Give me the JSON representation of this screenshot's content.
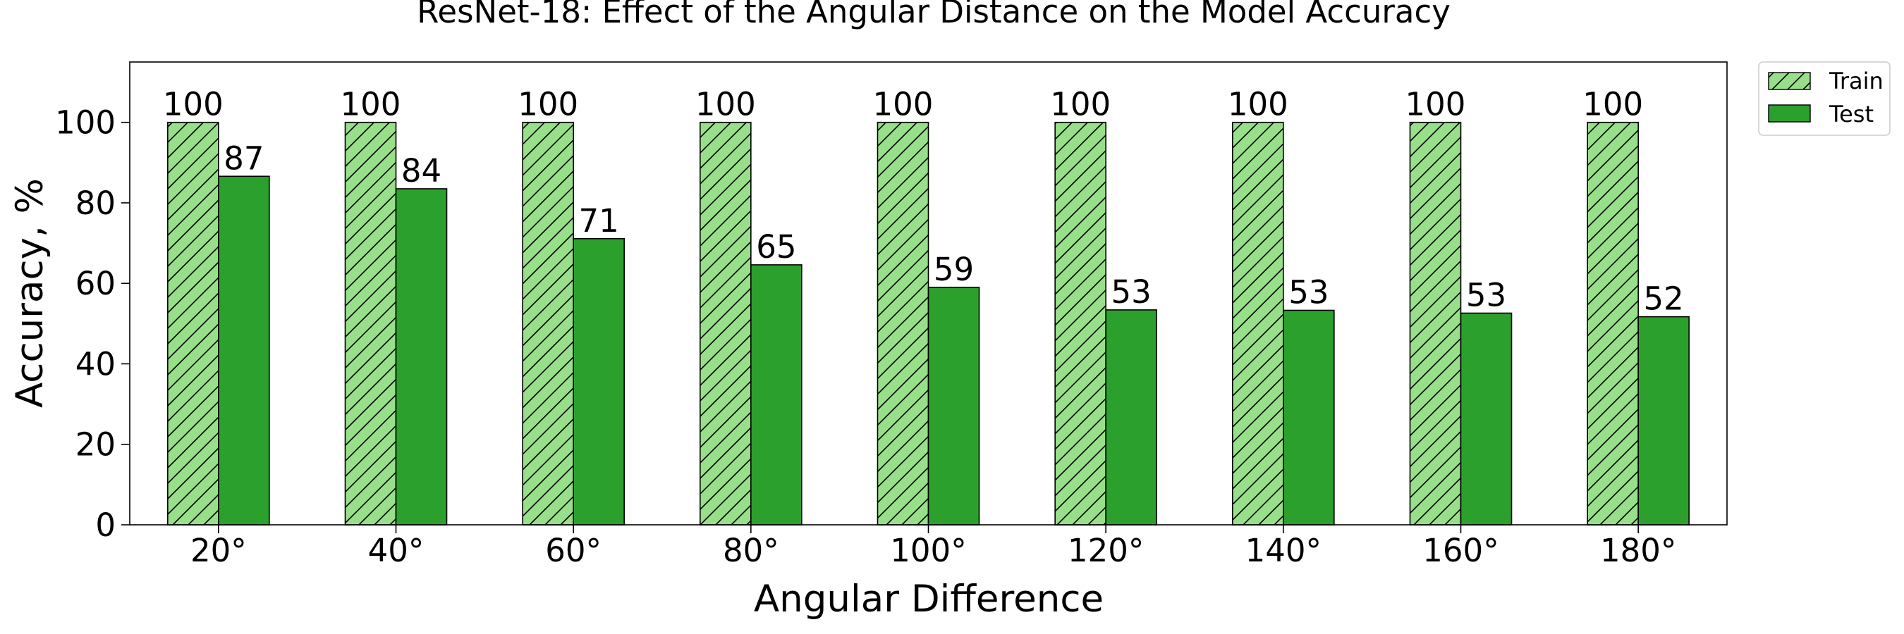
{
  "chart_data": {
    "type": "bar",
    "title": "ResNet-18: Effect of the Angular Distance on the Model Accuracy",
    "xlabel": "Angular Difference",
    "ylabel": "Accuracy, %",
    "categories": [
      "20°",
      "40°",
      "60°",
      "80°",
      "100°",
      "120°",
      "140°",
      "160°",
      "180°"
    ],
    "series": [
      {
        "name": "Train",
        "values": [
          100,
          100,
          100,
          100,
          100,
          100,
          100,
          100,
          100
        ],
        "labels": [
          "100",
          "100",
          "100",
          "100",
          "100",
          "100",
          "100",
          "100",
          "100"
        ],
        "color": "#98df8a",
        "hatch": "diagonal"
      },
      {
        "name": "Test",
        "values": [
          86.6,
          83.5,
          71.1,
          64.6,
          59.0,
          53.4,
          53.3,
          52.6,
          51.7
        ],
        "labels": [
          "87",
          "84",
          "71",
          "65",
          "59",
          "53",
          "53",
          "53",
          "52"
        ],
        "color": "#2ca02c",
        "hatch": "none"
      }
    ],
    "ylim": [
      0,
      115
    ],
    "yticks": [
      0,
      20,
      40,
      60,
      80,
      100
    ],
    "ytick_labels": [
      "0",
      "20",
      "40",
      "60",
      "80",
      "100"
    ],
    "grid": false,
    "legend": "outside-top-right"
  }
}
